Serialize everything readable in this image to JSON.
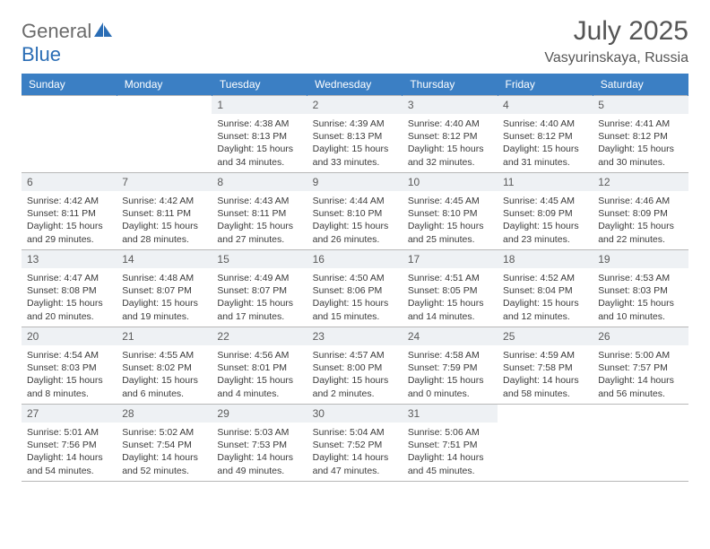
{
  "logo": {
    "part1": "General",
    "part2": "Blue"
  },
  "title": "July 2025",
  "location": "Vasyurinskaya, Russia",
  "colors": {
    "header_bg": "#3b7fc4",
    "header_text": "#ffffff",
    "daynum_bg": "#eef1f4",
    "daynum_text": "#5a5a5a",
    "body_text": "#3a3a3a",
    "border": "#b8b8b8",
    "logo_gray": "#6b6b6b",
    "logo_blue": "#2a6db5"
  },
  "day_names": [
    "Sunday",
    "Monday",
    "Tuesday",
    "Wednesday",
    "Thursday",
    "Friday",
    "Saturday"
  ],
  "labels": {
    "sunrise": "Sunrise:",
    "sunset": "Sunset:",
    "daylight": "Daylight:"
  },
  "weeks": [
    [
      null,
      null,
      {
        "n": "1",
        "sr": "4:38 AM",
        "ss": "8:13 PM",
        "dl": "15 hours and 34 minutes."
      },
      {
        "n": "2",
        "sr": "4:39 AM",
        "ss": "8:13 PM",
        "dl": "15 hours and 33 minutes."
      },
      {
        "n": "3",
        "sr": "4:40 AM",
        "ss": "8:12 PM",
        "dl": "15 hours and 32 minutes."
      },
      {
        "n": "4",
        "sr": "4:40 AM",
        "ss": "8:12 PM",
        "dl": "15 hours and 31 minutes."
      },
      {
        "n": "5",
        "sr": "4:41 AM",
        "ss": "8:12 PM",
        "dl": "15 hours and 30 minutes."
      }
    ],
    [
      {
        "n": "6",
        "sr": "4:42 AM",
        "ss": "8:11 PM",
        "dl": "15 hours and 29 minutes."
      },
      {
        "n": "7",
        "sr": "4:42 AM",
        "ss": "8:11 PM",
        "dl": "15 hours and 28 minutes."
      },
      {
        "n": "8",
        "sr": "4:43 AM",
        "ss": "8:11 PM",
        "dl": "15 hours and 27 minutes."
      },
      {
        "n": "9",
        "sr": "4:44 AM",
        "ss": "8:10 PM",
        "dl": "15 hours and 26 minutes."
      },
      {
        "n": "10",
        "sr": "4:45 AM",
        "ss": "8:10 PM",
        "dl": "15 hours and 25 minutes."
      },
      {
        "n": "11",
        "sr": "4:45 AM",
        "ss": "8:09 PM",
        "dl": "15 hours and 23 minutes."
      },
      {
        "n": "12",
        "sr": "4:46 AM",
        "ss": "8:09 PM",
        "dl": "15 hours and 22 minutes."
      }
    ],
    [
      {
        "n": "13",
        "sr": "4:47 AM",
        "ss": "8:08 PM",
        "dl": "15 hours and 20 minutes."
      },
      {
        "n": "14",
        "sr": "4:48 AM",
        "ss": "8:07 PM",
        "dl": "15 hours and 19 minutes."
      },
      {
        "n": "15",
        "sr": "4:49 AM",
        "ss": "8:07 PM",
        "dl": "15 hours and 17 minutes."
      },
      {
        "n": "16",
        "sr": "4:50 AM",
        "ss": "8:06 PM",
        "dl": "15 hours and 15 minutes."
      },
      {
        "n": "17",
        "sr": "4:51 AM",
        "ss": "8:05 PM",
        "dl": "15 hours and 14 minutes."
      },
      {
        "n": "18",
        "sr": "4:52 AM",
        "ss": "8:04 PM",
        "dl": "15 hours and 12 minutes."
      },
      {
        "n": "19",
        "sr": "4:53 AM",
        "ss": "8:03 PM",
        "dl": "15 hours and 10 minutes."
      }
    ],
    [
      {
        "n": "20",
        "sr": "4:54 AM",
        "ss": "8:03 PM",
        "dl": "15 hours and 8 minutes."
      },
      {
        "n": "21",
        "sr": "4:55 AM",
        "ss": "8:02 PM",
        "dl": "15 hours and 6 minutes."
      },
      {
        "n": "22",
        "sr": "4:56 AM",
        "ss": "8:01 PM",
        "dl": "15 hours and 4 minutes."
      },
      {
        "n": "23",
        "sr": "4:57 AM",
        "ss": "8:00 PM",
        "dl": "15 hours and 2 minutes."
      },
      {
        "n": "24",
        "sr": "4:58 AM",
        "ss": "7:59 PM",
        "dl": "15 hours and 0 minutes."
      },
      {
        "n": "25",
        "sr": "4:59 AM",
        "ss": "7:58 PM",
        "dl": "14 hours and 58 minutes."
      },
      {
        "n": "26",
        "sr": "5:00 AM",
        "ss": "7:57 PM",
        "dl": "14 hours and 56 minutes."
      }
    ],
    [
      {
        "n": "27",
        "sr": "5:01 AM",
        "ss": "7:56 PM",
        "dl": "14 hours and 54 minutes."
      },
      {
        "n": "28",
        "sr": "5:02 AM",
        "ss": "7:54 PM",
        "dl": "14 hours and 52 minutes."
      },
      {
        "n": "29",
        "sr": "5:03 AM",
        "ss": "7:53 PM",
        "dl": "14 hours and 49 minutes."
      },
      {
        "n": "30",
        "sr": "5:04 AM",
        "ss": "7:52 PM",
        "dl": "14 hours and 47 minutes."
      },
      {
        "n": "31",
        "sr": "5:06 AM",
        "ss": "7:51 PM",
        "dl": "14 hours and 45 minutes."
      },
      null,
      null
    ]
  ]
}
